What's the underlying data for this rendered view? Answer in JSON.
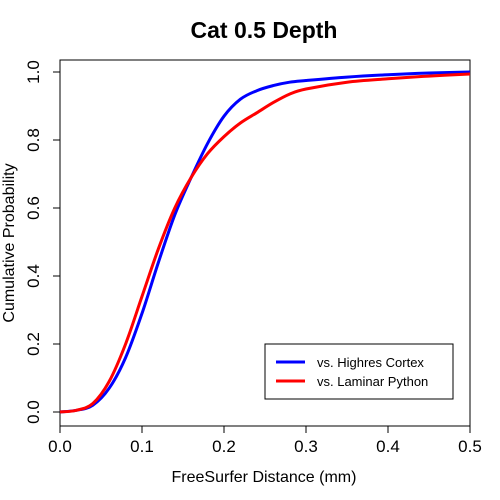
{
  "chart_data": {
    "type": "line",
    "title": "Cat 0.5 Depth",
    "xlabel": "FreeSurfer Distance (mm)",
    "ylabel": "Cumulative Probability",
    "xlim": [
      0,
      0.5
    ],
    "ylim": [
      0,
      1
    ],
    "x_ticks": [
      "0.0",
      "0.1",
      "0.2",
      "0.3",
      "0.4",
      "0.5"
    ],
    "y_ticks": [
      "0.0",
      "0.2",
      "0.4",
      "0.6",
      "0.8",
      "1.0"
    ],
    "grid": false,
    "legend_position": "bottom-right",
    "series": [
      {
        "name": "vs. Highres Cortex",
        "color": "#0000ff",
        "x": [
          0,
          0.02,
          0.04,
          0.06,
          0.08,
          0.1,
          0.12,
          0.14,
          0.16,
          0.18,
          0.2,
          0.22,
          0.24,
          0.26,
          0.28,
          0.3,
          0.35,
          0.4,
          0.45,
          0.5
        ],
        "y": [
          0,
          0.005,
          0.02,
          0.07,
          0.16,
          0.29,
          0.44,
          0.58,
          0.69,
          0.79,
          0.87,
          0.92,
          0.945,
          0.96,
          0.97,
          0.975,
          0.985,
          0.992,
          0.997,
          1.0
        ]
      },
      {
        "name": "vs. Laminar Python",
        "color": "#ff0000",
        "x": [
          0,
          0.02,
          0.04,
          0.06,
          0.08,
          0.1,
          0.12,
          0.14,
          0.16,
          0.18,
          0.2,
          0.22,
          0.24,
          0.26,
          0.28,
          0.3,
          0.35,
          0.4,
          0.45,
          0.5
        ],
        "y": [
          0,
          0.005,
          0.025,
          0.09,
          0.2,
          0.34,
          0.48,
          0.6,
          0.69,
          0.76,
          0.81,
          0.85,
          0.88,
          0.91,
          0.935,
          0.95,
          0.97,
          0.98,
          0.988,
          0.994
        ]
      }
    ]
  }
}
